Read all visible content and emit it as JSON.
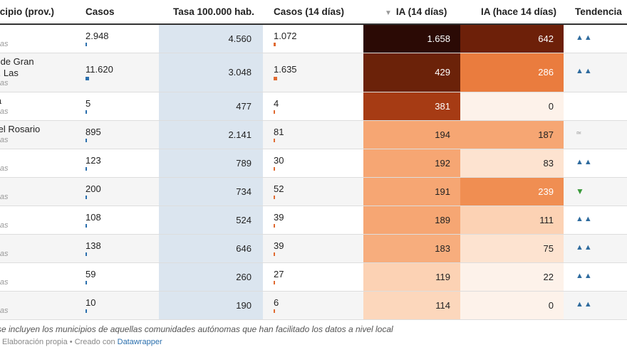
{
  "header": {
    "municipio": "icipio (prov.)",
    "casos": "Casos",
    "tasa": "Tasa 100.000 hab.",
    "casos14": "Casos (14 días)",
    "ia14": "IA (14 días)",
    "ia_hace14": "IA (hace 14 días)",
    "tendencia": "Tendencia",
    "sort_icon": "sort-down-icon"
  },
  "rows": [
    {
      "name1": "cife",
      "name2": "",
      "prov": "as, Las",
      "casos": "2.948",
      "casos_bar_frac": 0.25,
      "tasa": "4.560",
      "casos14": "1.072",
      "c14_bar_frac": 0.65,
      "ia14": "1.658",
      "ia14_bg": "#2b0a05",
      "ia14_fg": "#ffffff",
      "ia_hace": "642",
      "iah_bg": "#6d2009",
      "iah_fg": "#ffffff",
      "trend": "▲▲",
      "trend_type": "up"
    },
    {
      "name1": "nas de Gran",
      "name2": "aria, Las",
      "prov": "as, Las",
      "casos": "11.620",
      "casos_bar_frac": 1.0,
      "tasa": "3.048",
      "casos14": "1.635",
      "c14_bar_frac": 1.0,
      "ia14": "429",
      "ia14_bg": "#6b2209",
      "ia14_fg": "#ffffff",
      "ia_hace": "286",
      "iah_bg": "#ea7c3e",
      "iah_fg": "#ffffff",
      "trend": "▲▲",
      "trend_type": "up"
    },
    {
      "name1": "nara",
      "name2": "",
      "prov": "as, Las",
      "casos": "5",
      "casos_bar_frac": 0.0,
      "tasa": "477",
      "casos14": "4",
      "c14_bar_frac": 0.0,
      "ia14": "381",
      "ia14_bg": "#a63b14",
      "ia14_fg": "#ffffff",
      "ia_hace": "0",
      "iah_bg": "#fdf2ea",
      "iah_fg": "#222222",
      "trend": "",
      "trend_type": "none"
    },
    {
      "name1": "to del Rosario",
      "name2": "",
      "prov": "as, Las",
      "casos": "895",
      "casos_bar_frac": 0.08,
      "tasa": "2.141",
      "casos14": "81",
      "c14_bar_frac": 0.05,
      "ia14": "194",
      "ia14_bg": "#f6a673",
      "ia14_fg": "#222222",
      "ia_hace": "187",
      "iah_bg": "#f6a673",
      "iah_fg": "#222222",
      "trend": "≃",
      "trend_type": "approx"
    },
    {
      "name1": "eje",
      "name2": "",
      "prov": "as, Las",
      "casos": "123",
      "casos_bar_frac": 0.01,
      "tasa": "789",
      "casos14": "30",
      "c14_bar_frac": 0.02,
      "ia14": "192",
      "ia14_bg": "#f6a673",
      "ia14_fg": "#222222",
      "ia_hace": "83",
      "iah_bg": "#fde3d0",
      "iah_fg": "#222222",
      "trend": "▲▲",
      "trend_type": "up"
    },
    {
      "name1": ", La",
      "name2": "",
      "prov": "as, Las",
      "casos": "200",
      "casos_bar_frac": 0.02,
      "tasa": "734",
      "casos14": "52",
      "c14_bar_frac": 0.03,
      "ia14": "191",
      "ia14_bg": "#f6a673",
      "ia14_fg": "#222222",
      "ia_hace": "239",
      "iah_bg": "#f08e52",
      "iah_fg": "#ffffff",
      "trend": "▼",
      "trend_type": "down"
    },
    {
      "name1": "",
      "name2": "",
      "prov": "as, Las",
      "casos": "108",
      "casos_bar_frac": 0.01,
      "tasa": "524",
      "casos14": "39",
      "c14_bar_frac": 0.02,
      "ia14": "189",
      "ia14_bg": "#f6a673",
      "ia14_fg": "#222222",
      "ia_hace": "111",
      "iah_bg": "#fcd2b4",
      "iah_fg": "#222222",
      "trend": "▲▲",
      "trend_type": "up"
    },
    {
      "name1": "ra",
      "name2": "",
      "prov": "as, Las",
      "casos": "138",
      "casos_bar_frac": 0.01,
      "tasa": "646",
      "casos14": "39",
      "c14_bar_frac": 0.02,
      "ia14": "183",
      "ia14_bg": "#f7ad7d",
      "ia14_fg": "#222222",
      "ia_hace": "75",
      "iah_bg": "#fde3d0",
      "iah_fg": "#222222",
      "trend": "▲▲",
      "trend_type": "up"
    },
    {
      "name1": "uise",
      "name2": "",
      "prov": "as, Las",
      "casos": "59",
      "casos_bar_frac": 0.0,
      "tasa": "260",
      "casos14": "27",
      "c14_bar_frac": 0.02,
      "ia14": "119",
      "ia14_bg": "#fcd2b4",
      "ia14_fg": "#222222",
      "ia_hace": "22",
      "iah_bg": "#fdf2ea",
      "iah_fg": "#222222",
      "trend": "▲▲",
      "trend_type": "up"
    },
    {
      "name1": "a",
      "name2": "",
      "prov": "as, Las",
      "casos": "10",
      "casos_bar_frac": 0.0,
      "tasa": "190",
      "casos14": "6",
      "c14_bar_frac": 0.0,
      "ia14": "114",
      "ia14_bg": "#fcd7bc",
      "ia14_fg": "#222222",
      "ia_hace": "0",
      "iah_bg": "#fdf2ea",
      "iah_fg": "#222222",
      "trend": "▲▲",
      "trend_type": "up"
    }
  ],
  "footer": {
    "note": "se incluyen los municipios de aquellas comunidades autónomas que han facilitado los datos a nivel local",
    "credits": "Elaboración propia • Creado con",
    "datawrapper": "Datawrapper"
  }
}
